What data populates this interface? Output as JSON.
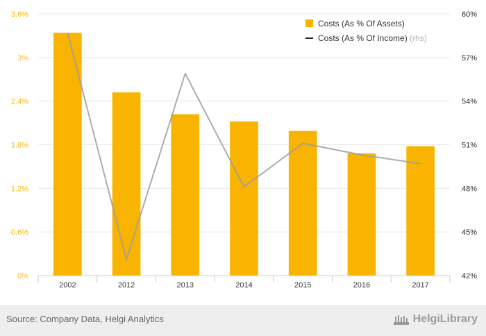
{
  "chart_data": {
    "type": "bar",
    "categories": [
      "2002",
      "2012",
      "2013",
      "2014",
      "2015",
      "2016",
      "2017"
    ],
    "series": [
      {
        "name": "Costs (As % Of Assets)",
        "type": "bar",
        "axis": "left",
        "color": "#f8b400",
        "values": [
          3.34,
          2.52,
          2.22,
          2.12,
          1.99,
          1.68,
          1.78
        ]
      },
      {
        "name": "Costs (As % Of Income)",
        "type": "line",
        "axis": "right",
        "color": "#9e9e9e",
        "values": [
          58.7,
          43.1,
          55.9,
          48.1,
          51.1,
          50.3,
          49.7
        ]
      }
    ],
    "y_left": {
      "ylim": [
        0,
        3.6
      ],
      "ticks": [
        0,
        0.6,
        1.2,
        1.8,
        2.4,
        3.0,
        3.6
      ],
      "tick_labels": [
        "0%",
        "0.6%",
        "1.2%",
        "1.8%",
        "2.4%",
        "3%",
        "3.6%"
      ],
      "tick_color": "#f8b400"
    },
    "y_right": {
      "ylim": [
        42,
        60
      ],
      "ticks": [
        42,
        45,
        48,
        51,
        54,
        57,
        60
      ],
      "tick_labels": [
        "42%",
        "45%",
        "48%",
        "51%",
        "54%",
        "57%",
        "60%"
      ]
    },
    "legend": {
      "position": "top-right",
      "items": [
        {
          "label": "Costs (As % Of Assets)",
          "suffix": "",
          "marker": "square",
          "color": "#f8b400"
        },
        {
          "label": "Costs (As % Of Income)",
          "suffix": "(rhs)",
          "marker": "line",
          "color": "#222222"
        }
      ]
    },
    "grid": true
  },
  "footer": {
    "source": "Source: Company Data, Helgi Analytics",
    "brand": "HelgiLibrary"
  }
}
